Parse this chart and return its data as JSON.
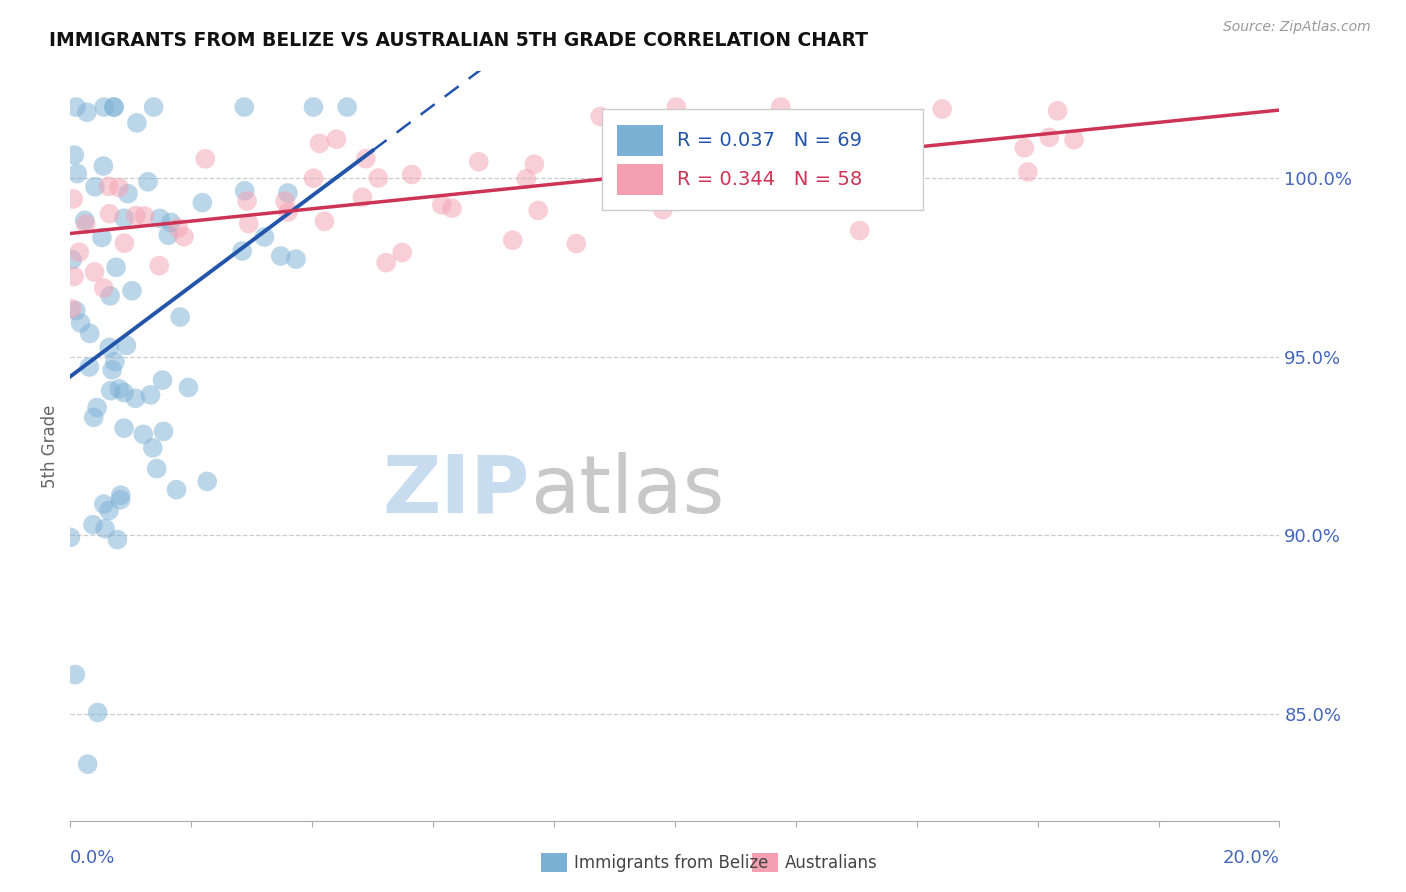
{
  "title": "IMMIGRANTS FROM BELIZE VS AUSTRALIAN 5TH GRADE CORRELATION CHART",
  "source": "Source: ZipAtlas.com",
  "ylabel": "5th Grade",
  "yticks": [
    85.0,
    90.0,
    95.0,
    100.0
  ],
  "ytick_labels": [
    "85.0%",
    "90.0%",
    "95.0%",
    "100.0%"
  ],
  "xmin": 0.0,
  "xmax": 20.0,
  "ymin": 82.0,
  "ymax": 103.0,
  "blue_R": 0.037,
  "blue_N": 69,
  "pink_R": 0.344,
  "pink_N": 58,
  "blue_color": "#7BAFD4",
  "pink_color": "#F4A0B0",
  "trend_blue_color": "#2255AA",
  "trend_pink_color": "#CC3355",
  "legend_R_color_blue": "#2255AA",
  "legend_R_color_pink": "#CC3355",
  "watermark_zip": "ZIP",
  "watermark_atlas": "atlas",
  "watermark_color_zip": "#C8DCF0",
  "watermark_color_atlas": "#C8C8C8",
  "seed": 7
}
